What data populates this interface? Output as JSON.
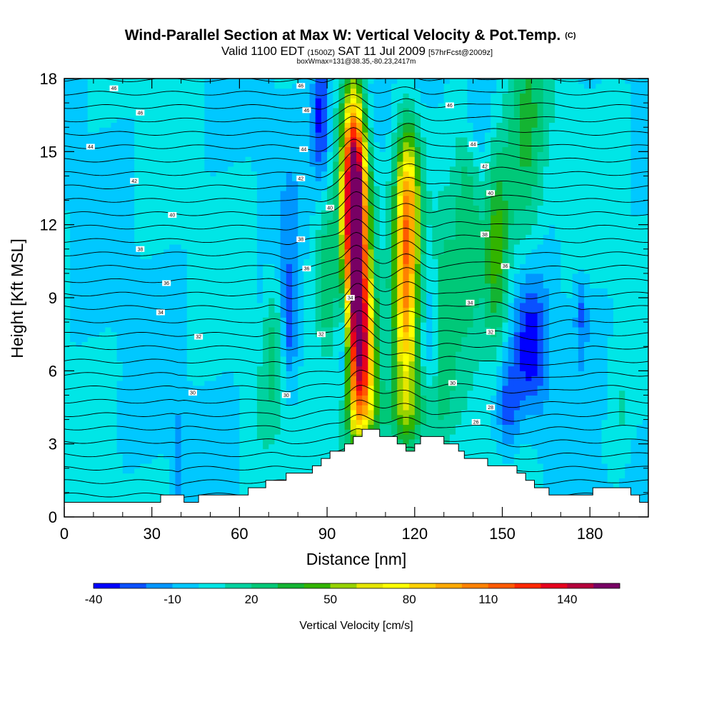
{
  "title": {
    "main": "Wind-Parallel Section at Max W: Vertical Velocity & Pot.Temp.",
    "copyright": "(C)",
    "valid_prefix": "Valid 1100 EDT",
    "valid_zulu": "(1500Z)",
    "valid_date": "SAT 11 Jul 2009",
    "forecast": "[57hrFcst@2009z]",
    "box_info": "boxWmax=131@38.35,-80.23,2417m"
  },
  "chart_data": {
    "type": "heatmap",
    "xlabel": "Distance [nm]",
    "ylabel": "Height [Kft MSL]",
    "xlim": [
      0,
      200
    ],
    "ylim": [
      0,
      18
    ],
    "x_ticks": [
      0,
      30,
      60,
      90,
      120,
      150,
      180
    ],
    "y_ticks": [
      0,
      3,
      6,
      9,
      12,
      15,
      18
    ],
    "colorbar": {
      "label": "Vertical Velocity [cm/s]",
      "min": -40,
      "max": 160,
      "step": 10,
      "tick_labels": [
        "-40",
        "-10",
        "20",
        "50",
        "80",
        "110",
        "140"
      ],
      "tick_values": [
        -40,
        -10,
        20,
        50,
        80,
        110,
        140
      ],
      "colors": [
        "#0000ff",
        "#0a50ff",
        "#0096ff",
        "#00c8ff",
        "#00e6e6",
        "#00d2a0",
        "#00c878",
        "#14b432",
        "#32b400",
        "#96d200",
        "#e6e600",
        "#ffff00",
        "#ffd200",
        "#ffaa00",
        "#ff8200",
        "#ff5a00",
        "#ff2800",
        "#e6001e",
        "#b4003c",
        "#780064"
      ]
    },
    "background_w": 0,
    "terrain": [
      [
        0,
        0.6
      ],
      [
        8,
        0.6
      ],
      [
        16,
        0.6
      ],
      [
        26,
        0.6
      ],
      [
        33,
        0.9
      ],
      [
        38,
        0.9
      ],
      [
        41,
        0.6
      ],
      [
        46,
        0.9
      ],
      [
        55,
        0.9
      ],
      [
        63,
        1.2
      ],
      [
        66,
        1.2
      ],
      [
        69,
        1.5
      ],
      [
        74,
        1.5
      ],
      [
        76,
        1.8
      ],
      [
        83,
        1.8
      ],
      [
        85,
        2.1
      ],
      [
        88,
        2.4
      ],
      [
        91,
        2.7
      ],
      [
        94,
        2.7
      ],
      [
        96,
        3.0
      ],
      [
        99,
        3.3
      ],
      [
        102,
        3.6
      ],
      [
        106,
        3.6
      ],
      [
        108,
        3.3
      ],
      [
        111,
        3.3
      ],
      [
        114,
        3.0
      ],
      [
        117,
        2.7
      ],
      [
        120,
        3.0
      ],
      [
        122,
        3.3
      ],
      [
        127,
        3.3
      ],
      [
        130,
        3.0
      ],
      [
        135,
        2.7
      ],
      [
        137,
        2.4
      ],
      [
        142,
        2.4
      ],
      [
        145,
        2.1
      ],
      [
        152,
        2.1
      ],
      [
        155,
        1.8
      ],
      [
        158,
        1.5
      ],
      [
        161,
        1.2
      ],
      [
        166,
        0.9
      ],
      [
        175,
        0.9
      ],
      [
        181,
        1.2
      ],
      [
        190,
        1.2
      ],
      [
        194,
        0.9
      ],
      [
        197,
        0.6
      ],
      [
        200,
        0.6
      ]
    ],
    "updraft_cores": [
      {
        "x": 100,
        "z": 10.5,
        "sx": 3.2,
        "sz": 3.6,
        "w": 140
      },
      {
        "x": 99,
        "z": 14.0,
        "sx": 2.6,
        "sz": 2.6,
        "w": 95
      },
      {
        "x": 102,
        "z": 6.5,
        "sx": 3.5,
        "sz": 2.2,
        "w": 90
      },
      {
        "x": 117,
        "z": 9.0,
        "sx": 3.0,
        "sz": 3.8,
        "w": 95
      },
      {
        "x": 118,
        "z": 13.5,
        "sx": 2.6,
        "sz": 2.0,
        "w": 45
      },
      {
        "x": 90,
        "z": 9.5,
        "sx": 3.0,
        "sz": 2.5,
        "w": 35
      },
      {
        "x": 138,
        "z": 13.0,
        "sx": 3.5,
        "sz": 3.5,
        "w": 35
      },
      {
        "x": 148,
        "z": 11.0,
        "sx": 3.0,
        "sz": 3.0,
        "w": 45
      },
      {
        "x": 158,
        "z": 15.0,
        "sx": 5.0,
        "sz": 4.0,
        "w": 30
      },
      {
        "x": 130,
        "z": 9.0,
        "sx": 3.0,
        "sz": 3.0,
        "w": 25
      },
      {
        "x": 70,
        "z": 7.0,
        "sx": 4.0,
        "sz": 2.0,
        "w": 20
      },
      {
        "x": 105,
        "z": 4.3,
        "sx": 8.0,
        "sz": 1.0,
        "w": 20
      },
      {
        "x": 120,
        "z": 4.3,
        "sx": 8.0,
        "sz": 1.0,
        "w": 18
      },
      {
        "x": 190,
        "z": 3.5,
        "sx": 3.0,
        "sz": 2.0,
        "w": 10
      }
    ],
    "downdraft_cores": [
      {
        "x": 88,
        "z": 16.5,
        "sx": 2.0,
        "sz": 2.0,
        "w": -35
      },
      {
        "x": 105,
        "z": 17.0,
        "sx": 4.0,
        "sz": 1.5,
        "w": -18
      },
      {
        "x": 96,
        "z": 7.0,
        "sx": 1.8,
        "sz": 2.0,
        "w": -40
      },
      {
        "x": 77,
        "z": 8.0,
        "sx": 2.0,
        "sz": 2.0,
        "w": -35
      },
      {
        "x": 67,
        "z": 7.5,
        "sx": 2.0,
        "sz": 1.5,
        "w": -15
      },
      {
        "x": 160,
        "z": 7.0,
        "sx": 4.0,
        "sz": 2.0,
        "w": -40
      },
      {
        "x": 152,
        "z": 4.5,
        "sx": 3.0,
        "sz": 1.5,
        "w": -30
      },
      {
        "x": 140,
        "z": 16.5,
        "sx": 3.0,
        "sz": 1.5,
        "w": -15
      },
      {
        "x": 126,
        "z": 8.0,
        "sx": 2.0,
        "sz": 2.0,
        "w": -15
      },
      {
        "x": 177,
        "z": 8.5,
        "sx": 1.5,
        "sz": 1.0,
        "w": -20
      },
      {
        "x": 39,
        "z": 2.5,
        "sx": 0.8,
        "sz": 1.5,
        "w": -15
      }
    ],
    "theta_labels": [
      {
        "x": 17,
        "z": 17.6,
        "text": "46"
      },
      {
        "x": 81,
        "z": 17.7,
        "text": "46"
      },
      {
        "x": 26,
        "z": 16.6,
        "text": "46"
      },
      {
        "x": 83,
        "z": 16.7,
        "text": "46"
      },
      {
        "x": 132,
        "z": 16.9,
        "text": "46"
      },
      {
        "x": 9,
        "z": 15.2,
        "text": "44"
      },
      {
        "x": 82,
        "z": 15.1,
        "text": "44"
      },
      {
        "x": 140,
        "z": 15.3,
        "text": "44"
      },
      {
        "x": 24,
        "z": 13.8,
        "text": "42"
      },
      {
        "x": 81,
        "z": 13.9,
        "text": "42"
      },
      {
        "x": 144,
        "z": 14.4,
        "text": "42"
      },
      {
        "x": 37,
        "z": 12.4,
        "text": "40"
      },
      {
        "x": 91,
        "z": 12.7,
        "text": "40"
      },
      {
        "x": 146,
        "z": 13.3,
        "text": "40"
      },
      {
        "x": 26,
        "z": 11.0,
        "text": "38"
      },
      {
        "x": 81,
        "z": 11.4,
        "text": "38"
      },
      {
        "x": 144,
        "z": 11.6,
        "text": "38"
      },
      {
        "x": 35,
        "z": 9.6,
        "text": "36"
      },
      {
        "x": 83,
        "z": 10.2,
        "text": "36"
      },
      {
        "x": 151,
        "z": 10.3,
        "text": "36"
      },
      {
        "x": 33,
        "z": 8.4,
        "text": "34"
      },
      {
        "x": 98,
        "z": 9.0,
        "text": "34"
      },
      {
        "x": 139,
        "z": 8.8,
        "text": "34"
      },
      {
        "x": 46,
        "z": 7.4,
        "text": "32"
      },
      {
        "x": 88,
        "z": 7.5,
        "text": "32"
      },
      {
        "x": 146,
        "z": 7.6,
        "text": "32"
      },
      {
        "x": 44,
        "z": 5.1,
        "text": "30"
      },
      {
        "x": 76,
        "z": 5.0,
        "text": "30"
      },
      {
        "x": 133,
        "z": 5.5,
        "text": "30"
      },
      {
        "x": 146,
        "z": 4.5,
        "text": "28"
      },
      {
        "x": 141,
        "z": 3.9,
        "text": "26"
      }
    ]
  }
}
